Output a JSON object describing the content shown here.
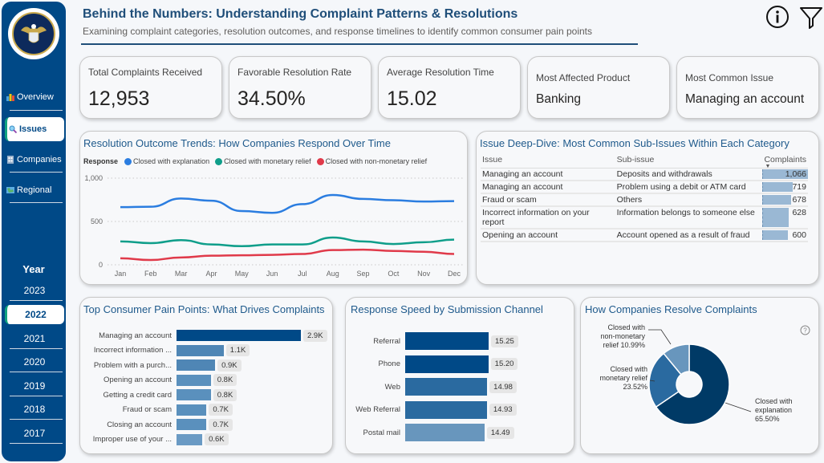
{
  "header": {
    "title": "Behind the Numbers: Understanding Complaint Patterns & Resolutions",
    "subtitle": "Examining complaint categories, resolution outcomes, and response timelines to identify common consumer pain points",
    "info_icon": "info-icon",
    "filter_icon": "filter-icon"
  },
  "sidebar": {
    "logo": "cfpb-seal-logo",
    "nav": [
      {
        "label": "Overview",
        "icon": "bar-chart-icon",
        "active": false
      },
      {
        "label": "Issues",
        "icon": "magnifier-icon",
        "active": true
      },
      {
        "label": "Companies",
        "icon": "building-icon",
        "active": false
      },
      {
        "label": "Regional",
        "icon": "map-icon",
        "active": false
      }
    ],
    "year_title": "Year",
    "years": [
      {
        "label": "2023",
        "active": false
      },
      {
        "label": "2022",
        "active": true
      },
      {
        "label": "2021",
        "active": false
      },
      {
        "label": "2020",
        "active": false
      },
      {
        "label": "2019",
        "active": false
      },
      {
        "label": "2018",
        "active": false
      },
      {
        "label": "2017",
        "active": false
      }
    ]
  },
  "kpis": [
    {
      "label": "Total Complaints Received",
      "value": "12,953"
    },
    {
      "label": "Favorable Resolution Rate",
      "value": "34.50%"
    },
    {
      "label": "Average Resolution Time",
      "value": "15.02"
    },
    {
      "label": "Most Affected Product",
      "value": "Banking"
    },
    {
      "label": "Most Common Issue",
      "value": "Managing an account"
    }
  ],
  "chart_data": [
    {
      "type": "line",
      "title": "Resolution Outcome Trends: How Companies Respond Over Time",
      "legend_title": "Response",
      "legend_position": "top-left",
      "x": [
        "Jan",
        "Feb",
        "Mar",
        "Apr",
        "May",
        "Jun",
        "Jul",
        "Aug",
        "Sep",
        "Oct",
        "Nov",
        "Dec"
      ],
      "ylim": [
        0,
        1000
      ],
      "yticks": [
        0,
        500,
        1000
      ],
      "ytick_labels": [
        "0",
        "500",
        "1,000"
      ],
      "grid": true,
      "series": [
        {
          "name": "Closed with explanation",
          "color": "#2b7de0",
          "values": [
            665,
            670,
            765,
            740,
            620,
            600,
            700,
            805,
            760,
            745,
            730,
            735
          ]
        },
        {
          "name": "Closed with monetary relief",
          "color": "#0f9e8a",
          "values": [
            270,
            250,
            285,
            235,
            215,
            235,
            235,
            315,
            270,
            240,
            260,
            290
          ]
        },
        {
          "name": "Closed with non-monetary relief",
          "color": "#e03a4a",
          "values": [
            75,
            55,
            85,
            105,
            110,
            115,
            125,
            170,
            175,
            160,
            150,
            125
          ]
        }
      ]
    },
    {
      "type": "table",
      "title": "Issue Deep-Dive: Most Common Sub-Issues Within Each Category",
      "columns": [
        "Issue",
        "Sub-issue",
        "Complaints"
      ],
      "sort_column": "Complaints",
      "rows": [
        {
          "issue": "Managing an account",
          "sub_issue": "Deposits and withdrawals",
          "complaints": 1066,
          "display": "1,066"
        },
        {
          "issue": "Managing an account",
          "sub_issue": "Problem using a debit or ATM card",
          "complaints": 719,
          "display": "719"
        },
        {
          "issue": "Fraud or scam",
          "sub_issue": "Others",
          "complaints": 678,
          "display": "678"
        },
        {
          "issue": "Incorrect information on your report",
          "sub_issue": "Information belongs to someone else",
          "complaints": 628,
          "display": "628"
        },
        {
          "issue": "Opening an account",
          "sub_issue": "Account opened as a result of fraud",
          "complaints": 600,
          "display": "600"
        }
      ]
    },
    {
      "type": "bar",
      "orientation": "horizontal",
      "title": "Top Consumer Pain Points: What Drives Complaints",
      "categories": [
        "Managing an account",
        "Incorrect information ...",
        "Problem with a purch...",
        "Opening an account",
        "Getting a credit card",
        "Fraud or scam",
        "Closing an account",
        "Improper use of your ..."
      ],
      "values": [
        2.9,
        1.1,
        0.9,
        0.8,
        0.8,
        0.7,
        0.7,
        0.6
      ],
      "data_labels": [
        "2.9K",
        "1.1K",
        "0.9K",
        "0.8K",
        "0.8K",
        "0.7K",
        "0.7K",
        "0.6K"
      ],
      "unit": "thousand complaints",
      "colors": [
        "#004987",
        "#4f86b5",
        "#4f86b5",
        "#5a90bd",
        "#5a90bd",
        "#5a90bd",
        "#5a90bd",
        "#6a9ac4"
      ]
    },
    {
      "type": "bar",
      "orientation": "horizontal",
      "title": "Response Speed by Submission Channel",
      "categories": [
        "Referral",
        "Phone",
        "Web",
        "Web Referral",
        "Postal mail"
      ],
      "values": [
        15.25,
        15.2,
        14.98,
        14.93,
        14.49
      ],
      "data_labels": [
        "15.25",
        "15.20",
        "14.98",
        "14.93",
        "14.49"
      ],
      "axis_min": 0,
      "colors": [
        "#004987",
        "#004987",
        "#2a6aa0",
        "#2a6aa0",
        "#6896bd"
      ]
    },
    {
      "type": "pie",
      "title": "How Companies Resolve Complaints",
      "donut": true,
      "help_icon": "question-icon",
      "slices": [
        {
          "label": "Closed with explanation",
          "value": 65.5,
          "display": "65.50%",
          "color": "#003a66"
        },
        {
          "label": "Closed with monetary relief",
          "value": 23.52,
          "display": "23.52%",
          "color": "#2a6aa0"
        },
        {
          "label": "Closed with non-monetary relief",
          "value": 10.99,
          "display": "10.99%",
          "color": "#6896bd"
        }
      ]
    }
  ]
}
